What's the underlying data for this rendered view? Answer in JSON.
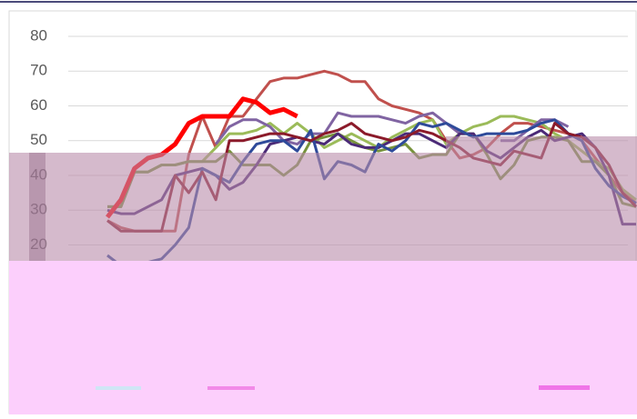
{
  "chart_data": {
    "type": "line",
    "ylim": [
      0,
      80
    ],
    "yticks": [
      20,
      30,
      40,
      50,
      60,
      70,
      80
    ],
    "grid": true,
    "series": [
      {
        "color": "#c0504d",
        "values": [
          27,
          25,
          24,
          24,
          24,
          24,
          46,
          57,
          48,
          57,
          57,
          62,
          67,
          68,
          68,
          69,
          70,
          69,
          67,
          67,
          62,
          60,
          59,
          58,
          56,
          50,
          45,
          46,
          48,
          52,
          55,
          55,
          54,
          53,
          52,
          50,
          45,
          40,
          35,
          32
        ]
      },
      {
        "color": "#9bbb59",
        "values": [
          31,
          31,
          41,
          41,
          43,
          43,
          44,
          44,
          48,
          52,
          52,
          53,
          55,
          52,
          55,
          52,
          48,
          50,
          52,
          50,
          48,
          51,
          53,
          55,
          56,
          49,
          52,
          54,
          55,
          57,
          57,
          56,
          55,
          52,
          50,
          47,
          44,
          42,
          36,
          33
        ]
      },
      {
        "color": "#77933c",
        "values": [
          31,
          31,
          41,
          41,
          43,
          43,
          44,
          44,
          44,
          47,
          43,
          43,
          43,
          40,
          43,
          50,
          51,
          52,
          50,
          48,
          47,
          48,
          49,
          45,
          46,
          46,
          52,
          52,
          46,
          39,
          43,
          50,
          51,
          51,
          50,
          44,
          44,
          40,
          32,
          31
        ]
      },
      {
        "color": "#8064a2",
        "values": [
          null,
          null,
          null,
          null,
          null,
          null,
          null,
          null,
          49,
          54,
          56,
          56,
          54,
          50,
          49,
          52,
          52,
          58,
          57,
          57,
          57,
          56,
          55,
          57,
          58,
          55,
          52,
          null,
          null,
          50,
          50,
          53,
          56,
          56,
          54,
          null,
          null,
          null,
          null,
          null
        ]
      },
      {
        "color": "#4b2a77",
        "values": [
          30,
          29,
          29,
          31,
          33,
          40,
          41,
          42,
          40,
          36,
          38,
          43,
          49,
          50,
          51,
          50,
          49,
          52,
          49,
          48,
          48,
          50,
          52,
          52,
          50,
          48,
          52,
          52,
          47,
          45,
          48,
          51,
          53,
          50,
          51,
          52,
          48,
          40,
          26,
          26
        ]
      },
      {
        "color": "#2e4a9a",
        "values": [
          17,
          14,
          15,
          15,
          16,
          20,
          25,
          42,
          40,
          38,
          44,
          49,
          50,
          50,
          47,
          53,
          39,
          44,
          43,
          41,
          49,
          47,
          50,
          55,
          54,
          55,
          53,
          51,
          52,
          52,
          52,
          53,
          55,
          56,
          52,
          50,
          42,
          37,
          34,
          32
        ]
      },
      {
        "color": "#8b1a2a",
        "values": [
          27,
          24,
          24,
          24,
          24,
          40,
          35,
          41,
          33,
          50,
          50,
          51,
          52,
          52,
          51,
          50,
          52,
          53,
          55,
          52,
          51,
          50,
          51,
          53,
          52,
          50,
          48,
          45,
          44,
          43,
          47,
          46,
          45,
          55,
          52,
          51,
          48,
          43,
          35,
          31
        ]
      },
      {
        "color": "#ff0000",
        "values": [
          28,
          33,
          42,
          45,
          46,
          49,
          55,
          57,
          57,
          57,
          62,
          61,
          58,
          59,
          57,
          null,
          null,
          null,
          null,
          null,
          null,
          null,
          null,
          null,
          null,
          null,
          null,
          null,
          null,
          null,
          null,
          null,
          null,
          null,
          null,
          null,
          null,
          null,
          null,
          null
        ]
      }
    ]
  }
}
